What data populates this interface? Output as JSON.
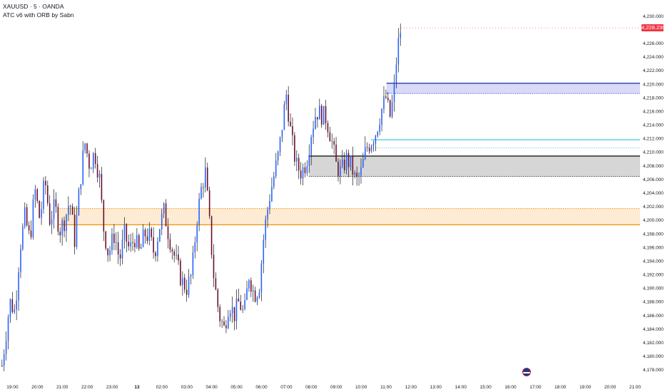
{
  "header": {
    "symbol_line": "XAUUSD · 5 · OANDA",
    "indicator_line": "ATC v6 with ORB by Sabn"
  },
  "price_tag": {
    "value": "4,228.230",
    "color": "#f23645"
  },
  "event_marker": {
    "icon": "us-flag-icon"
  },
  "chart_data": {
    "type": "candlestick",
    "ylim": [
      4176.5,
      4231.5
    ],
    "y_ticks": [
      "4,178.000",
      "4,180.000",
      "4,182.000",
      "4,184.000",
      "4,186.000",
      "4,188.000",
      "4,190.000",
      "4,192.000",
      "4,194.000",
      "4,196.000",
      "4,198.000",
      "4,200.000",
      "4,202.000",
      "4,204.000",
      "4,206.000",
      "4,208.000",
      "4,210.000",
      "4,212.000",
      "4,214.000",
      "4,216.000",
      "4,218.000",
      "4,220.000",
      "4,222.000",
      "4,224.000",
      "4,226.000",
      "4,228.000",
      "4,230.000"
    ],
    "y_tick_values": [
      4178,
      4180,
      4182,
      4184,
      4186,
      4188,
      4190,
      4192,
      4194,
      4196,
      4198,
      4200,
      4202,
      4204,
      4206,
      4208,
      4210,
      4212,
      4214,
      4216,
      4218,
      4220,
      4222,
      4224,
      4226,
      4228,
      4230
    ],
    "x_ticks": [
      "19:00",
      "20:00",
      "21:00",
      "22:00",
      "23:00",
      "13",
      "02:00",
      "03:00",
      "04:00",
      "05:00",
      "06:00",
      "07:00",
      "08:00",
      "09:00",
      "10:00",
      "11:00",
      "12:00",
      "13:00",
      "14:00",
      "15:00",
      "16:00",
      "17:00",
      "18:00",
      "19:00",
      "20:00",
      "21:00"
    ],
    "x_tick_hours": [
      0,
      1,
      2,
      3,
      4,
      5,
      6,
      7,
      8,
      9,
      10,
      11,
      12,
      13,
      14,
      15,
      16,
      17,
      18,
      19,
      20,
      21,
      22,
      23,
      24,
      25
    ],
    "x_range_hours": [
      -0.5,
      25.2
    ],
    "last_price": 4228.23,
    "colors": {
      "up": "#2962ff",
      "down": "#6b0f2a",
      "wick": "#131722"
    },
    "close_path": [
      [
        -0.42,
        4178.6
      ],
      [
        -0.1,
        4188.0
      ],
      [
        0.1,
        4186.5
      ],
      [
        0.3,
        4196.0
      ],
      [
        0.5,
        4200.5
      ],
      [
        0.7,
        4197.0
      ],
      [
        0.9,
        4204.5
      ],
      [
        1.1,
        4200.0
      ],
      [
        1.3,
        4206.0
      ],
      [
        1.5,
        4200.0
      ],
      [
        1.7,
        4202.0
      ],
      [
        1.9,
        4198.5
      ],
      [
        2.1,
        4200.0
      ],
      [
        2.3,
        4203.0
      ],
      [
        2.5,
        4197.0
      ],
      [
        2.7,
        4205.0
      ],
      [
        2.9,
        4211.5
      ],
      [
        3.1,
        4208.0
      ],
      [
        3.3,
        4210.0
      ],
      [
        3.5,
        4206.0
      ],
      [
        3.65,
        4199.0
      ],
      [
        3.85,
        4195.0
      ],
      [
        4.1,
        4198.0
      ],
      [
        4.3,
        4194.0
      ],
      [
        4.5,
        4198.0
      ],
      [
        4.7,
        4195.5
      ],
      [
        4.9,
        4197.5
      ],
      [
        5.1,
        4195.0
      ],
      [
        5.3,
        4198.0
      ],
      [
        5.5,
        4197.5
      ],
      [
        5.7,
        4195.0
      ],
      [
        5.9,
        4199.0
      ],
      [
        6.1,
        4201.5
      ],
      [
        6.2,
        4199.0
      ],
      [
        6.4,
        4196.0
      ],
      [
        6.6,
        4193.5
      ],
      [
        6.8,
        4191.0
      ],
      [
        7.0,
        4190.0
      ],
      [
        7.2,
        4192.0
      ],
      [
        7.4,
        4200.0
      ],
      [
        7.6,
        4205.0
      ],
      [
        7.75,
        4207.0
      ],
      [
        7.9,
        4200.0
      ],
      [
        8.1,
        4191.0
      ],
      [
        8.3,
        4186.0
      ],
      [
        8.5,
        4184.0
      ],
      [
        8.7,
        4188.0
      ],
      [
        8.9,
        4186.0
      ],
      [
        9.1,
        4188.0
      ],
      [
        9.3,
        4186.0
      ],
      [
        9.5,
        4192.0
      ],
      [
        9.7,
        4189.0
      ],
      [
        9.9,
        4190.0
      ],
      [
        10.1,
        4198.0
      ],
      [
        10.3,
        4203.0
      ],
      [
        10.5,
        4206.5
      ],
      [
        10.7,
        4210.0
      ],
      [
        10.9,
        4216.0
      ],
      [
        11.0,
        4218.5
      ],
      [
        11.2,
        4212.0
      ],
      [
        11.4,
        4208.0
      ],
      [
        11.6,
        4207.0
      ],
      [
        11.8,
        4208.5
      ],
      [
        12.0,
        4213.0
      ],
      [
        12.2,
        4216.0
      ],
      [
        12.4,
        4215.5
      ],
      [
        12.6,
        4215.0
      ],
      [
        12.8,
        4212.0
      ],
      [
        13.0,
        4208.0
      ],
      [
        13.2,
        4207.0
      ],
      [
        13.4,
        4209.0
      ],
      [
        13.6,
        4208.0
      ],
      [
        13.8,
        4205.5
      ],
      [
        14.0,
        4207.0
      ],
      [
        14.2,
        4210.5
      ],
      [
        14.4,
        4211.5
      ],
      [
        14.6,
        4213.0
      ],
      [
        14.8,
        4216.0
      ],
      [
        15.0,
        4218.0
      ],
      [
        15.15,
        4215.0
      ],
      [
        15.3,
        4218.0
      ],
      [
        15.45,
        4225.0
      ],
      [
        15.6,
        4228.23
      ]
    ],
    "zones": [
      {
        "top": 4220.1,
        "bottom": 4218.6,
        "x_start_hours": 15.02,
        "fill": "#d1d4f7",
        "line": "#2a3aa8",
        "edge": "top"
      },
      {
        "top": 4211.8,
        "bottom": 4210.6,
        "x_start_hours": 14.4,
        "fill": "#ffffff",
        "line": "#4dd0e1",
        "edge": "both"
      },
      {
        "top": 4209.4,
        "bottom": 4206.4,
        "x_start_hours": 11.9,
        "fill": "#cfcfcf",
        "line": "#1a1a1a",
        "edge": "top"
      },
      {
        "top": 4201.7,
        "bottom": 4199.3,
        "x_start_hours": 1.82,
        "fill": "#fde8cc",
        "line": "#f29400",
        "edge": "bottom"
      }
    ]
  }
}
